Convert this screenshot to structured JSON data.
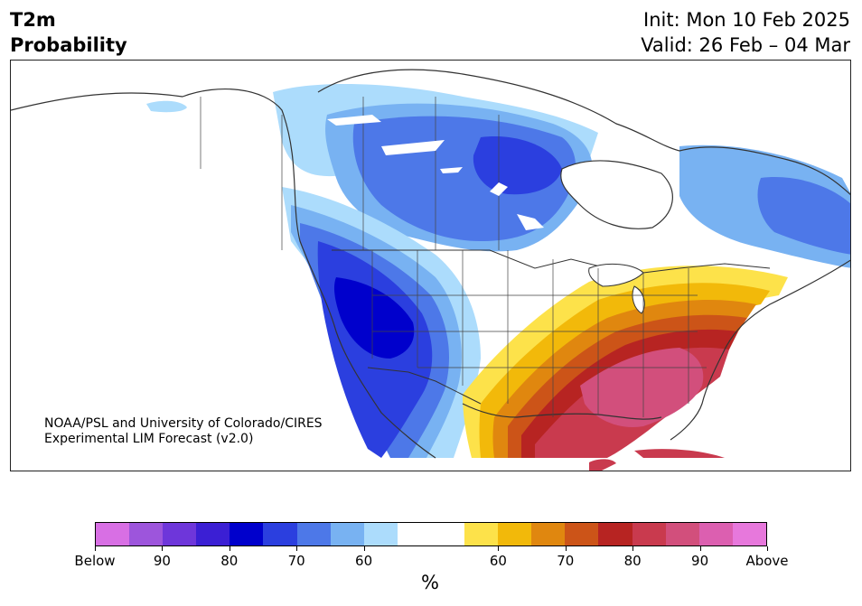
{
  "title": {
    "left_line1": "T2m",
    "left_line2": "Probability",
    "right_line1": "Init: Mon 10 Feb 2025",
    "right_line2": "Valid: 26 Feb – 04 Mar"
  },
  "credit": {
    "line1": "NOAA/PSL and University of Colorado/CIRES",
    "line2": "Experimental LIM Forecast (v2.0)"
  },
  "colorbar": {
    "unit": "%",
    "colors": [
      "#d86fe4",
      "#9d55dc",
      "#6e36da",
      "#3b1fd4",
      "#0000cc",
      "#2b3fdf",
      "#4d78e8",
      "#78b2f2",
      "#acdcfc",
      "#ffffff",
      "#ffffff",
      "#fde24a",
      "#f2b90a",
      "#e0870f",
      "#cc5418",
      "#b72422",
      "#c93a4e",
      "#d24f7c",
      "#dc5fb0",
      "#e778dc"
    ],
    "ticks": [
      "Below",
      "90",
      "80",
      "70",
      "60",
      "60",
      "70",
      "80",
      "90",
      "Above"
    ]
  },
  "map": {
    "legend_colors": {
      "deep_blue": "#0000cc",
      "royal_blue": "#2b3fdf",
      "mid_blue": "#4d78e8",
      "light_blue": "#78b2f2",
      "pale_blue": "#acdcfc",
      "yellow": "#fde24a",
      "gold": "#f2b90a",
      "orange": "#e0870f",
      "dark_orange": "#cc5418",
      "red": "#b72422",
      "crimson": "#c93a4e",
      "rose": "#d24f7c"
    }
  }
}
